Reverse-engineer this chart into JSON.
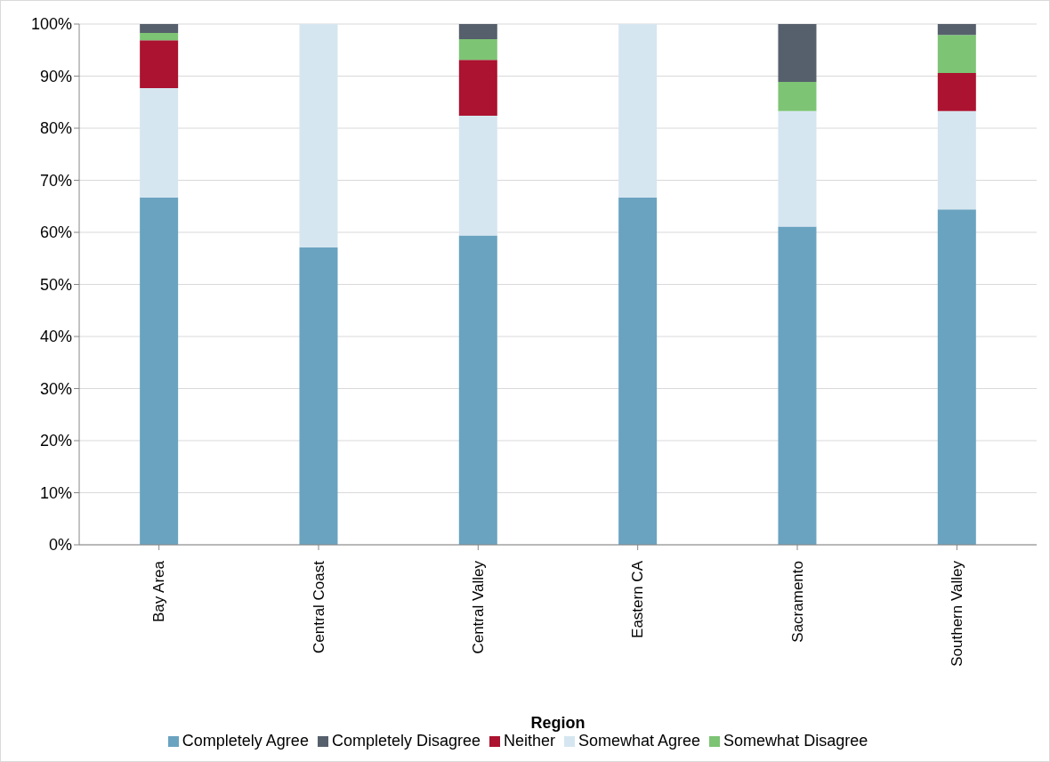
{
  "chart_data": {
    "type": "bar",
    "stacked": true,
    "xlabel": "Region",
    "categories": [
      "Bay Area",
      "Central Coast",
      "Central Valley",
      "Eastern CA",
      "Sacramento",
      "Southern Valley"
    ],
    "series": [
      {
        "name": "Completely Agree",
        "color": "#6aa3c0",
        "values": [
          66.7,
          57.1,
          59.4,
          66.7,
          61.1,
          64.4
        ]
      },
      {
        "name": "Somewhat Agree",
        "color": "#d6e6f0",
        "values": [
          21.0,
          42.9,
          23.0,
          33.3,
          22.2,
          18.9
        ]
      },
      {
        "name": "Neither",
        "color": "#ab1330",
        "values": [
          9.2,
          0,
          10.7,
          0,
          0,
          7.3
        ]
      },
      {
        "name": "Somewhat Disagree",
        "color": "#7dc474",
        "values": [
          1.4,
          0,
          4.0,
          0,
          5.6,
          7.3
        ]
      },
      {
        "name": "Completely Disagree",
        "color": "#56606c",
        "values": [
          1.7,
          0,
          2.9,
          0,
          11.1,
          2.1
        ]
      }
    ],
    "ylim": [
      0,
      100
    ],
    "yticks": [
      {
        "value": 0,
        "label": "0%"
      },
      {
        "value": 10,
        "label": "10%"
      },
      {
        "value": 20,
        "label": "20%"
      },
      {
        "value": 30,
        "label": "30%"
      },
      {
        "value": 40,
        "label": "40%"
      },
      {
        "value": 50,
        "label": "50%"
      },
      {
        "value": 60,
        "label": "60%"
      },
      {
        "value": 70,
        "label": "70%"
      },
      {
        "value": 80,
        "label": "80%"
      },
      {
        "value": 90,
        "label": "90%"
      },
      {
        "value": 100,
        "label": "100%"
      }
    ],
    "grid": "y",
    "legend": "bottom"
  }
}
